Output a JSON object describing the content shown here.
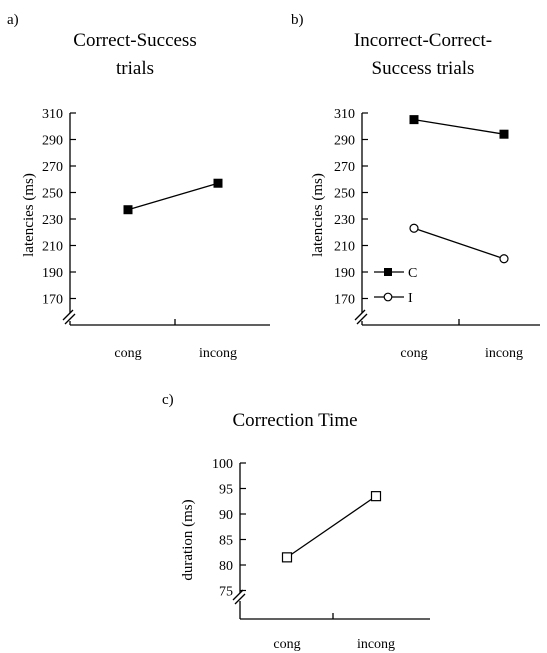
{
  "chart_data": [
    {
      "panel": "a)",
      "type": "line",
      "title_lines": [
        "Correct-Success",
        "trials"
      ],
      "xlabel": "",
      "ylabel": "latencies (ms)",
      "categories": [
        "cong",
        "incong"
      ],
      "yticks": [
        170,
        190,
        210,
        230,
        250,
        270,
        290,
        310
      ],
      "ylim": [
        150,
        310
      ],
      "axis_break": true,
      "series": [
        {
          "name": "",
          "marker": "filled-square",
          "values": [
            237,
            257
          ]
        }
      ]
    },
    {
      "panel": "b)",
      "type": "line",
      "title_lines": [
        "Incorrect-Correct-",
        "Success trials"
      ],
      "xlabel": "",
      "ylabel": "latencies (ms)",
      "categories": [
        "cong",
        "incong"
      ],
      "yticks": [
        170,
        190,
        210,
        230,
        250,
        270,
        290,
        310
      ],
      "ylim": [
        150,
        310
      ],
      "axis_break": true,
      "legend": "bottom-left",
      "series": [
        {
          "name": "C",
          "marker": "filled-square",
          "values": [
            305,
            294
          ]
        },
        {
          "name": "I",
          "marker": "open-circle",
          "values": [
            223,
            200
          ]
        }
      ]
    },
    {
      "panel": "c)",
      "type": "line",
      "title_lines": [
        "Correction Time"
      ],
      "xlabel": "",
      "ylabel": "duration (ms)",
      "categories": [
        "cong",
        "incong"
      ],
      "yticks": [
        75,
        80,
        85,
        90,
        95,
        100
      ],
      "ylim": [
        70,
        100
      ],
      "axis_break": true,
      "series": [
        {
          "name": "",
          "marker": "open-square",
          "values": [
            81.5,
            93.5
          ]
        }
      ]
    }
  ]
}
